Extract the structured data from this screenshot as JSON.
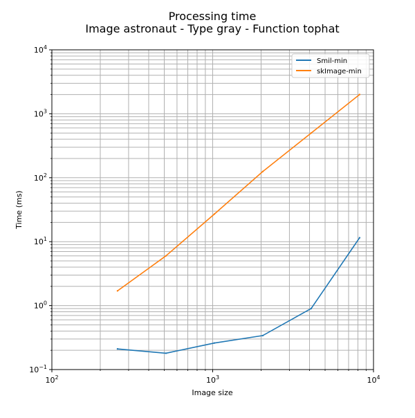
{
  "chart_data": {
    "type": "line",
    "title": "Processing time",
    "subtitle": "Image astronaut - Type gray - Function tophat",
    "xlabel": "Image size",
    "ylabel": "Time (ms)",
    "x_scale": "log",
    "y_scale": "log",
    "xlim": [
      100,
      10000
    ],
    "ylim": [
      0.1,
      10000
    ],
    "grid": true,
    "legend_position": "top-right",
    "x_ticks": [
      {
        "value": 100,
        "base": "10",
        "exp": "2"
      },
      {
        "value": 1000,
        "base": "10",
        "exp": "3"
      },
      {
        "value": 10000,
        "base": "10",
        "exp": "4"
      }
    ],
    "y_ticks": [
      {
        "value": 0.1,
        "base": "10",
        "exp": "−1"
      },
      {
        "value": 1,
        "base": "10",
        "exp": "0"
      },
      {
        "value": 10,
        "base": "10",
        "exp": "1"
      },
      {
        "value": 100,
        "base": "10",
        "exp": "2"
      },
      {
        "value": 1000,
        "base": "10",
        "exp": "3"
      },
      {
        "value": 10000,
        "base": "10",
        "exp": "4"
      }
    ],
    "x": [
      256,
      512,
      1024,
      2048,
      4096,
      8192
    ],
    "series": [
      {
        "name": "Smil-min",
        "color": "#1f77b4",
        "values": [
          0.21,
          0.18,
          0.26,
          0.34,
          0.9,
          11.5
        ]
      },
      {
        "name": "skImage-min",
        "color": "#ff7f0e",
        "values": [
          1.7,
          6.0,
          27.0,
          125.0,
          500.0,
          2000.0
        ]
      }
    ]
  }
}
